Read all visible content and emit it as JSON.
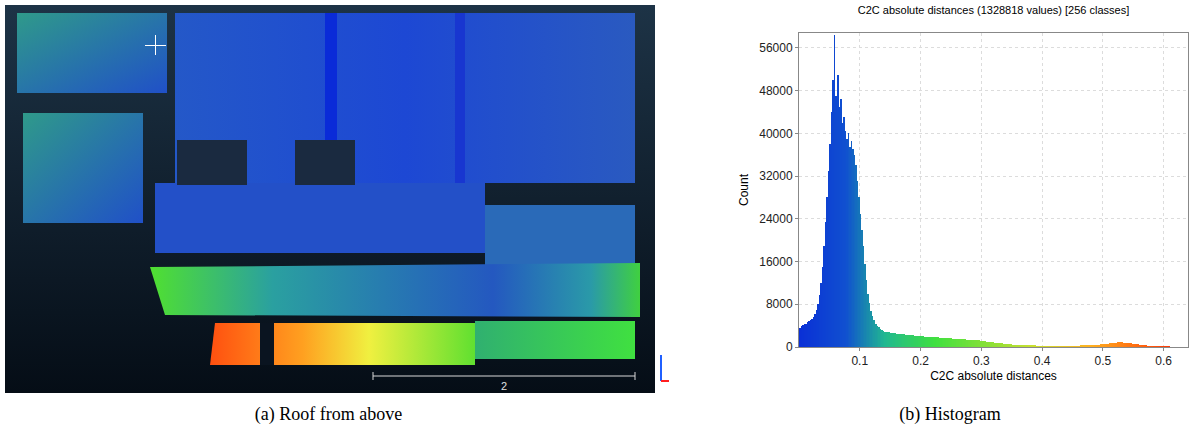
{
  "image_panel": {
    "caption": "(a) Roof from above",
    "scale_bar": 2
  },
  "chart_data": {
    "type": "histogram",
    "title": "C2C absolute distances (1328818 values) [256 classes]",
    "x_label": "C2C absolute distances",
    "y_label": "Count",
    "caption": "(b) Histogram",
    "bins": [
      0,
      0.0025,
      0.005,
      0.0075,
      0.01,
      0.0125,
      0.015,
      0.0175,
      0.02,
      0.0225,
      0.025,
      0.0275,
      0.03,
      0.0325,
      0.035,
      0.0375,
      0.04,
      0.0425,
      0.045,
      0.0475,
      0.05,
      0.0525,
      0.055,
      0.0575,
      0.06,
      0.0625,
      0.065,
      0.0675,
      0.07,
      0.0725,
      0.075,
      0.0775,
      0.08,
      0.0825,
      0.085,
      0.0875,
      0.09,
      0.0925,
      0.095,
      0.0975,
      0.1,
      0.1025,
      0.105,
      0.1075,
      0.11,
      0.1125,
      0.115,
      0.1175,
      0.12,
      0.1225,
      0.125,
      0.1275,
      0.13,
      0.1325,
      0.135,
      0.1375,
      0.14,
      0.1425,
      0.145,
      0.1475,
      0.15,
      0.1525,
      0.155,
      0.1575,
      0.16,
      0.1625,
      0.165,
      0.1675,
      0.17,
      0.1725,
      0.175,
      0.1775,
      0.18,
      0.1825,
      0.185,
      0.1875,
      0.19,
      0.1925,
      0.195,
      0.1975,
      0.2,
      0.2025,
      0.205,
      0.2075,
      0.21,
      0.2125,
      0.215,
      0.2175,
      0.22,
      0.2225,
      0.225,
      0.2275,
      0.23,
      0.2325,
      0.235,
      0.2375,
      0.24,
      0.2425,
      0.245,
      0.2475,
      0.25,
      0.2525,
      0.255,
      0.2575,
      0.26,
      0.2625,
      0.265,
      0.2675,
      0.27,
      0.2725,
      0.275,
      0.2775,
      0.28,
      0.2825,
      0.285,
      0.2875,
      0.29,
      0.2925,
      0.295,
      0.2975,
      0.3,
      0.3025,
      0.305,
      0.3075,
      0.31,
      0.3125,
      0.315,
      0.3175,
      0.32,
      0.3225,
      0.325,
      0.3275,
      0.33,
      0.3325,
      0.335,
      0.3375,
      0.34,
      0.3425,
      0.345,
      0.3475,
      0.35,
      0.3525,
      0.355,
      0.3575,
      0.36,
      0.3625,
      0.365,
      0.3675,
      0.37,
      0.3725,
      0.375,
      0.3775,
      0.38,
      0.3825,
      0.385,
      0.3875,
      0.39,
      0.3925,
      0.395,
      0.3975,
      0.4,
      0.4025,
      0.405,
      0.4075,
      0.41,
      0.4125,
      0.415,
      0.4175,
      0.42,
      0.4225,
      0.425,
      0.4275,
      0.43,
      0.4325,
      0.435,
      0.4375,
      0.44,
      0.4425,
      0.445,
      0.4475,
      0.45,
      0.4525,
      0.455,
      0.4575,
      0.46,
      0.4625,
      0.465,
      0.4675,
      0.47,
      0.4725,
      0.475,
      0.4775,
      0.48,
      0.4825,
      0.485,
      0.4875,
      0.49,
      0.4925,
      0.495,
      0.4975,
      0.5,
      0.5025,
      0.505,
      0.5075,
      0.51,
      0.5125,
      0.515,
      0.5175,
      0.52,
      0.5225,
      0.525,
      0.5275,
      0.53,
      0.5325,
      0.535,
      0.5375,
      0.54,
      0.5425,
      0.545,
      0.5475,
      0.55,
      0.5525,
      0.555,
      0.5575,
      0.56,
      0.5625,
      0.565,
      0.5675,
      0.57,
      0.5725,
      0.575,
      0.5775,
      0.58,
      0.5825,
      0.585,
      0.5875,
      0.59,
      0.5925,
      0.595,
      0.5975,
      0.6,
      0.6025,
      0.605,
      0.6075,
      0.61,
      0.6125,
      0.615,
      0.6175,
      0.62,
      0.6225,
      0.625,
      0.6275,
      0.63,
      0.6325,
      0.635,
      0.6375,
      0.64
    ],
    "values": [
      3600,
      3900,
      4100,
      4300,
      4400,
      4600,
      4800,
      5000,
      5300,
      5700,
      6200,
      6900,
      8000,
      9800,
      12000,
      15000,
      19000,
      23500,
      28000,
      33000,
      38000,
      44000,
      50000,
      58500,
      47000,
      51000,
      45000,
      46500,
      42000,
      43000,
      40500,
      39000,
      40000,
      37500,
      38500,
      37000,
      36000,
      34000,
      31000,
      28000,
      25000,
      22000,
      19000,
      15500,
      12500,
      10000,
      8200,
      6800,
      5800,
      5000,
      4400,
      4000,
      3700,
      3400,
      3200,
      3000,
      2900,
      2850,
      2800,
      2750,
      2700,
      2650,
      2600,
      2550,
      2500,
      2480,
      2450,
      2420,
      2400,
      2370,
      2340,
      2300,
      2270,
      2240,
      2200,
      2170,
      2140,
      2100,
      2070,
      2040,
      2000,
      1980,
      1960,
      1940,
      1920,
      1900,
      1880,
      1860,
      1840,
      1820,
      1800,
      1780,
      1760,
      1740,
      1720,
      1700,
      1680,
      1660,
      1640,
      1620,
      1600,
      1580,
      1560,
      1540,
      1520,
      1500,
      1480,
      1460,
      1440,
      1420,
      1400,
      1380,
      1360,
      1340,
      1320,
      1300,
      1280,
      1250,
      1220,
      1190,
      1150,
      1110,
      1070,
      1030,
      990,
      950,
      910,
      870,
      830,
      790,
      750,
      720,
      690,
      660,
      630,
      600,
      570,
      540,
      510,
      480,
      460,
      440,
      420,
      400,
      390,
      380,
      370,
      360,
      350,
      340,
      330,
      320,
      310,
      300,
      290,
      285,
      280,
      275,
      270,
      265,
      260,
      255,
      250,
      245,
      240,
      235,
      230,
      225,
      220,
      215,
      210,
      205,
      200,
      200,
      200,
      205,
      210,
      215,
      220,
      230,
      240,
      250,
      260,
      270,
      280,
      290,
      300,
      310,
      320,
      330,
      340,
      350,
      360,
      380,
      400,
      420,
      440,
      460,
      480,
      500,
      530,
      560,
      600,
      640,
      680,
      720,
      760,
      800,
      830,
      850,
      870,
      880,
      860,
      840,
      820,
      790,
      760,
      720,
      680,
      640,
      600,
      560,
      520,
      480,
      440,
      400,
      370,
      340,
      310,
      280,
      260,
      240,
      220,
      200,
      190,
      180,
      170,
      160,
      150,
      140,
      130,
      120,
      110,
      100,
      90,
      80,
      70,
      60,
      55,
      50,
      45,
      40,
      35,
      30,
      25,
      20
    ],
    "xlim": [
      0,
      0.64
    ],
    "xticks": [
      0.1,
      0.2,
      0.3,
      0.4,
      0.5,
      0.6
    ],
    "ylim": [
      0,
      58800
    ],
    "yticks": [
      0,
      8000,
      16000,
      24000,
      32000,
      40000,
      48000,
      56000
    ],
    "grid": true
  }
}
